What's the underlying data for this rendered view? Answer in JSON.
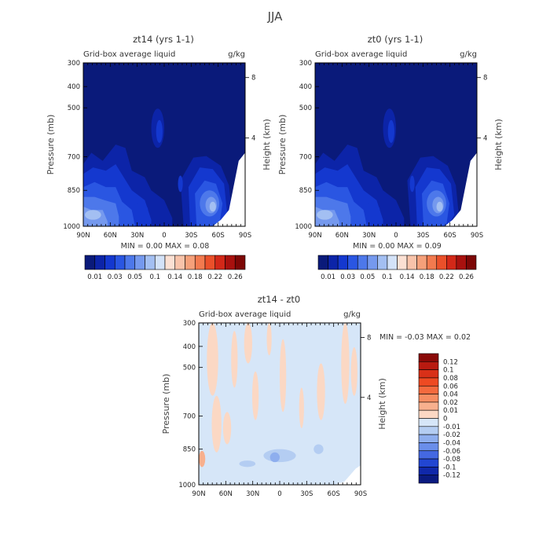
{
  "page_title": "JJA",
  "chart_data": [
    {
      "type": "heatmap",
      "title": "zt14 (yrs 1-1)",
      "subtitle": "Grid-box average liquid",
      "units": "g/kg",
      "ylabel": "Pressure (mb)",
      "ylabel_right": "Height (km)",
      "x_ticks": [
        "90N",
        "60N",
        "30N",
        "0",
        "30S",
        "60S",
        "90S"
      ],
      "y_ticks": [
        "300",
        "400",
        "500",
        "700",
        "850",
        "1000"
      ],
      "y_ticks_right": [
        "8",
        "4"
      ],
      "ylim": [
        300,
        1000
      ],
      "stats_text": "MIN =    0.00   MAX =    0.08",
      "min": 0.0,
      "max": 0.08,
      "colorbar_labels": [
        "0.01",
        "0.03",
        "0.05",
        "0.1",
        "0.14",
        "0.18",
        "0.22",
        "0.26"
      ],
      "colorbar_colors": [
        "#0a1a7a",
        "#0c24a8",
        "#1438cf",
        "#2a56e2",
        "#4d78ea",
        "#7599ee",
        "#a3bff2",
        "#d3e2f8",
        "#fbe0d3",
        "#f8c3aa",
        "#f5a07a",
        "#f27a4f",
        "#ea502a",
        "#d22818",
        "#a8110e",
        "#7d0706"
      ]
    },
    {
      "type": "heatmap",
      "title": "zt0 (yrs 1-1)",
      "subtitle": "Grid-box average liquid",
      "units": "g/kg",
      "ylabel": "Pressure (mb)",
      "ylabel_right": "Height (km)",
      "x_ticks": [
        "90N",
        "60N",
        "30N",
        "0",
        "30S",
        "60S",
        "90S"
      ],
      "y_ticks": [
        "300",
        "400",
        "500",
        "700",
        "850",
        "1000"
      ],
      "y_ticks_right": [
        "8",
        "4"
      ],
      "ylim": [
        300,
        1000
      ],
      "stats_text": "MIN =    0.00   MAX =    0.09",
      "min": 0.0,
      "max": 0.09,
      "colorbar_labels": [
        "0.01",
        "0.03",
        "0.05",
        "0.1",
        "0.14",
        "0.18",
        "0.22",
        "0.26"
      ],
      "colorbar_colors": [
        "#0a1a7a",
        "#0c24a8",
        "#1438cf",
        "#2a56e2",
        "#4d78ea",
        "#7599ee",
        "#a3bff2",
        "#d3e2f8",
        "#fbe0d3",
        "#f8c3aa",
        "#f5a07a",
        "#f27a4f",
        "#ea502a",
        "#d22818",
        "#a8110e",
        "#7d0706"
      ]
    },
    {
      "type": "heatmap",
      "title": "zt14 - zt0",
      "subtitle": "Grid-box average liquid",
      "units": "g/kg",
      "ylabel": "Pressure (mb)",
      "ylabel_right": "Height (km)",
      "x_ticks": [
        "90N",
        "60N",
        "30N",
        "0",
        "30S",
        "60S",
        "90S"
      ],
      "y_ticks": [
        "300",
        "400",
        "500",
        "700",
        "850",
        "1000"
      ],
      "y_ticks_right": [
        "8",
        "4"
      ],
      "ylim": [
        300,
        1000
      ],
      "stats_text": "MIN =   -0.03   MAX =    0.02",
      "min": -0.03,
      "max": 0.02,
      "colorbar_labels": [
        "0.12",
        "0.1",
        "0.08",
        "0.06",
        "0.04",
        "0.02",
        "0.01",
        "0",
        "-0.01",
        "-0.02",
        "-0.04",
        "-0.06",
        "-0.08",
        "-0.1",
        "-0.12"
      ],
      "colorbar_colors": [
        "#8a0a08",
        "#b81a10",
        "#d83018",
        "#ee4a22",
        "#f46a3e",
        "#f68d62",
        "#f8b08e",
        "#fbd8c4",
        "#d6e6f8",
        "#b4cdf2",
        "#8eaeee",
        "#6a8eea",
        "#4468e2",
        "#2246d2",
        "#1028aa",
        "#0a1a80"
      ]
    }
  ]
}
